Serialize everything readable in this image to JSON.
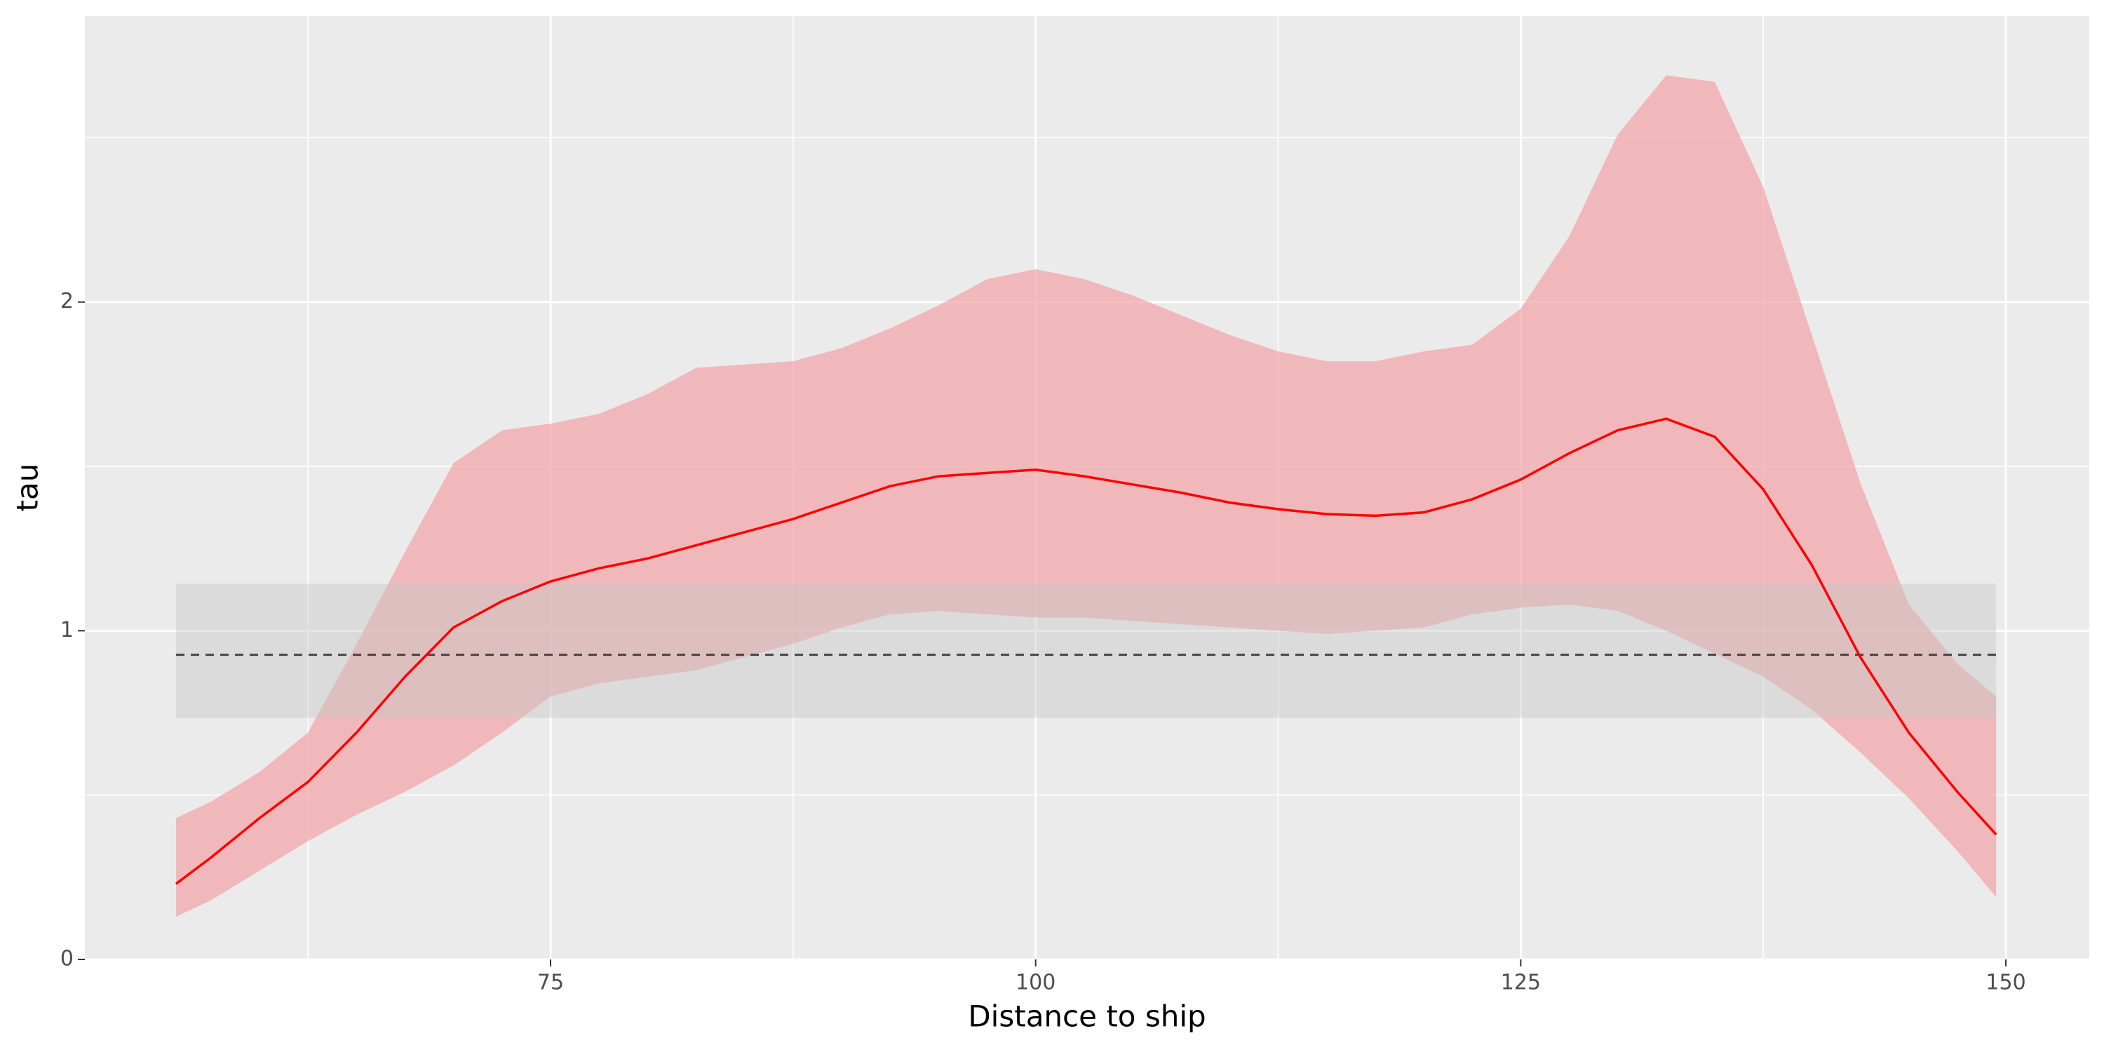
{
  "chart_data": {
    "type": "ribbon-line",
    "x_label": "Distance to ship",
    "y_label": "tau",
    "x": [
      55.7,
      57.5,
      60,
      62.5,
      65,
      67.5,
      70,
      72.5,
      75,
      77.5,
      80,
      82.5,
      85,
      87.5,
      90,
      92.5,
      95,
      97.5,
      100,
      102.5,
      105,
      107.5,
      110,
      112.5,
      115,
      117.5,
      120,
      122.5,
      125,
      127.5,
      130,
      132.5,
      135,
      137.5,
      140,
      142.5,
      145,
      147.5,
      149.5
    ],
    "line": {
      "color": "#ff0000",
      "values": [
        0.23,
        0.31,
        0.43,
        0.54,
        0.69,
        0.86,
        1.01,
        1.09,
        1.15,
        1.19,
        1.22,
        1.26,
        1.3,
        1.34,
        1.39,
        1.44,
        1.47,
        1.48,
        1.49,
        1.47,
        1.445,
        1.42,
        1.39,
        1.37,
        1.355,
        1.35,
        1.36,
        1.4,
        1.46,
        1.54,
        1.61,
        1.645,
        1.59,
        1.43,
        1.2,
        0.92,
        0.69,
        0.51,
        0.38
      ]
    },
    "ribbon": {
      "color": "#f2a3a5",
      "upper": [
        0.43,
        0.48,
        0.57,
        0.69,
        0.96,
        1.24,
        1.51,
        1.61,
        1.63,
        1.66,
        1.72,
        1.8,
        1.81,
        1.82,
        1.86,
        1.92,
        1.99,
        2.07,
        2.1,
        2.07,
        2.02,
        1.96,
        1.9,
        1.85,
        1.82,
        1.82,
        1.85,
        1.87,
        1.98,
        2.2,
        2.51,
        2.69,
        2.67,
        2.35,
        1.9,
        1.45,
        1.08,
        0.9,
        0.8
      ],
      "lower": [
        0.13,
        0.18,
        0.27,
        0.36,
        0.44,
        0.51,
        0.59,
        0.69,
        0.8,
        0.84,
        0.86,
        0.88,
        0.92,
        0.96,
        1.01,
        1.05,
        1.06,
        1.05,
        1.04,
        1.04,
        1.03,
        1.02,
        1.01,
        1.0,
        0.99,
        1.0,
        1.01,
        1.05,
        1.07,
        1.08,
        1.06,
        1.0,
        0.93,
        0.86,
        0.76,
        0.63,
        0.49,
        0.33,
        0.19
      ]
    },
    "reference": {
      "value": 0.927,
      "lower": 0.735,
      "upper": 1.143,
      "xmin": 55.7,
      "xmax": 149.5,
      "color": "#444444",
      "band_color": "#c8c8c8"
    },
    "xlim": [
      51.0,
      154.3
    ],
    "ylim": [
      0,
      2.87
    ],
    "xticks": [
      75,
      100,
      125,
      150
    ],
    "yticks": [
      0,
      1,
      2
    ],
    "minor_xticks": [
      62.5,
      87.5,
      112.5,
      137.5
    ],
    "minor_yticks": [
      0.5,
      1.5,
      2.5
    ],
    "grid": true
  }
}
